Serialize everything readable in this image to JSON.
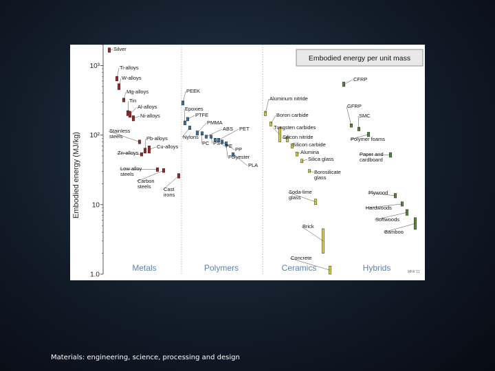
{
  "caption": "Materials: engineering, science, processing and design",
  "colors": {
    "metals": "#a02828",
    "polymers": "#3d78ad",
    "ceramics": "#d8d24a",
    "hybrids": "#5d8a3a",
    "family_label": "#5b7fae",
    "title_box": "#e9e9e9"
  },
  "chart_data": {
    "type": "bar",
    "title": "Embodied energy per unit mass",
    "ylabel": "Embodied energy (MJ/kg)",
    "yscale": "log",
    "ylim": [
      1.0,
      2000
    ],
    "yticks": [
      {
        "value": 1.0,
        "label": "1.0"
      },
      {
        "value": 10,
        "label": "10"
      },
      {
        "value": 100,
        "label": "10²"
      },
      {
        "value": 1000,
        "label": "10³"
      }
    ],
    "credit": "MFA '11",
    "families": [
      {
        "key": "metals",
        "name": "Metals"
      },
      {
        "key": "polymers",
        "name": "Polymers"
      },
      {
        "key": "ceramics",
        "name": "Ceramics"
      },
      {
        "key": "hybrids",
        "name": "Hybrids"
      }
    ],
    "materials": [
      {
        "name": "Silver",
        "family": "metals",
        "low": 1550,
        "high": 1800
      },
      {
        "name": "Ti-alloys",
        "family": "metals",
        "low": 600,
        "high": 700
      },
      {
        "name": "W-alloys",
        "family": "metals",
        "low": 450,
        "high": 550
      },
      {
        "name": "Mg-alloys",
        "family": "metals",
        "low": 300,
        "high": 340
      },
      {
        "name": "Tin",
        "family": "metals",
        "low": 190,
        "high": 225
      },
      {
        "name": "Al-alloys",
        "family": "metals",
        "low": 180,
        "high": 220
      },
      {
        "name": "Ni-alloys",
        "family": "metals",
        "low": 160,
        "high": 190
      },
      {
        "name": "Stainless steels",
        "family": "metals",
        "low": 75,
        "high": 85
      },
      {
        "name": "Pb-alloys",
        "family": "metals",
        "low": 55,
        "high": 65
      },
      {
        "name": "Cu-alloys",
        "family": "metals",
        "low": 55,
        "high": 70
      },
      {
        "name": "Zn-alloys",
        "family": "metals",
        "low": 50,
        "high": 56
      },
      {
        "name": "Low alloy steels",
        "family": "metals",
        "low": 30,
        "high": 34
      },
      {
        "name": "Carbon steels",
        "family": "metals",
        "low": 29,
        "high": 33
      },
      {
        "name": "Cast irons",
        "family": "metals",
        "low": 24,
        "high": 28
      },
      {
        "name": "PEEK",
        "family": "polymers",
        "low": 270,
        "high": 310
      },
      {
        "name": "PTFE",
        "family": "polymers",
        "low": 160,
        "high": 180
      },
      {
        "name": "Epoxies",
        "family": "polymers",
        "low": 140,
        "high": 160
      },
      {
        "name": "Nylons",
        "family": "polymers",
        "low": 120,
        "high": 135
      },
      {
        "name": "PMMA",
        "family": "polymers",
        "low": 100,
        "high": 115
      },
      {
        "name": "PC",
        "family": "polymers",
        "low": 100,
        "high": 112
      },
      {
        "name": "ABS",
        "family": "polymers",
        "low": 90,
        "high": 100
      },
      {
        "name": "PS",
        "family": "polymers",
        "low": 90,
        "high": 100
      },
      {
        "name": "PE",
        "family": "polymers",
        "low": 80,
        "high": 90
      },
      {
        "name": "PET",
        "family": "polymers",
        "low": 80,
        "high": 90
      },
      {
        "name": "PP",
        "family": "polymers",
        "low": 75,
        "high": 85
      },
      {
        "name": "Polyester",
        "family": "polymers",
        "low": 70,
        "high": 80
      },
      {
        "name": "PLA",
        "family": "polymers",
        "low": 50,
        "high": 56
      },
      {
        "name": "Aluminum nitride",
        "family": "ceramics",
        "low": 190,
        "high": 220
      },
      {
        "name": "Boron carbide",
        "family": "ceramics",
        "low": 135,
        "high": 155
      },
      {
        "name": "Tungsten carbides",
        "family": "ceramics",
        "low": 80,
        "high": 130
      },
      {
        "name": "Silicon nitride",
        "family": "ceramics",
        "low": 80,
        "high": 95
      },
      {
        "name": "Silicon carbide",
        "family": "ceramics",
        "low": 65,
        "high": 75
      },
      {
        "name": "Alumina",
        "family": "ceramics",
        "low": 50,
        "high": 57
      },
      {
        "name": "Silica glass",
        "family": "ceramics",
        "low": 40,
        "high": 45
      },
      {
        "name": "Borosilicate glass",
        "family": "ceramics",
        "low": 29,
        "high": 32
      },
      {
        "name": "Soda-lime glass",
        "family": "ceramics",
        "low": 10,
        "high": 12
      },
      {
        "name": "Brick",
        "family": "ceramics",
        "low": 2.0,
        "high": 4.5
      },
      {
        "name": "Concrete",
        "family": "ceramics",
        "low": 1.0,
        "high": 1.3
      },
      {
        "name": "CFRP",
        "family": "hybrids",
        "low": 500,
        "high": 580
      },
      {
        "name": "GFRP",
        "family": "hybrids",
        "low": 130,
        "high": 145
      },
      {
        "name": "SMC",
        "family": "hybrids",
        "low": 115,
        "high": 130
      },
      {
        "name": "Polymer foams",
        "family": "hybrids",
        "low": 95,
        "high": 110
      },
      {
        "name": "Paper and cardboard",
        "family": "hybrids",
        "low": 48,
        "high": 56
      },
      {
        "name": "Plywood",
        "family": "hybrids",
        "low": 12.5,
        "high": 14.5
      },
      {
        "name": "Hardwoods",
        "family": "hybrids",
        "low": 9.5,
        "high": 11
      },
      {
        "name": "Softwoods",
        "family": "hybrids",
        "low": 7.0,
        "high": 8.5
      },
      {
        "name": "Bamboo",
        "family": "hybrids",
        "low": 4.4,
        "high": 6.5
      }
    ]
  }
}
